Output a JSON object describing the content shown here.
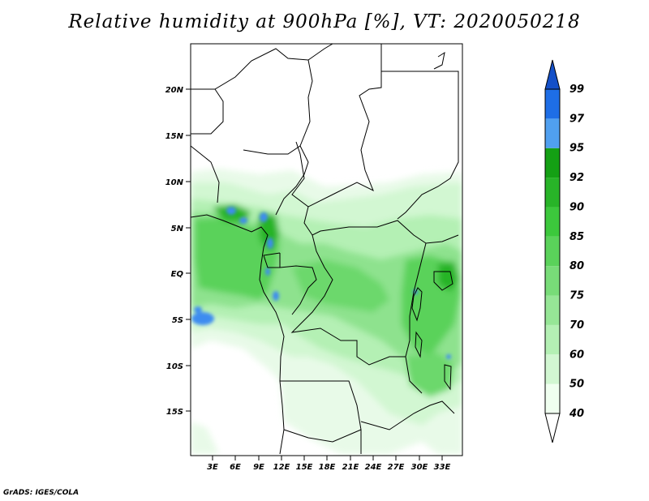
{
  "title": "Relative humidity at 900hPa [%], VT: 2020050218",
  "credit": "GrADS: IGES/COLA",
  "map": {
    "lat_labels": [
      "20N",
      "15N",
      "10N",
      "5N",
      "EQ",
      "5S",
      "10S",
      "15S"
    ],
    "lon_labels": [
      "3E",
      "6E",
      "9E",
      "12E",
      "15E",
      "18E",
      "21E",
      "24E",
      "27E",
      "30E",
      "33E"
    ]
  },
  "colorbar": {
    "levels": [
      "40",
      "50",
      "60",
      "70",
      "75",
      "80",
      "85",
      "90",
      "92",
      "95",
      "97",
      "99"
    ],
    "colors": [
      "#f0fff0",
      "#d2f7d2",
      "#b4f0b4",
      "#96e696",
      "#78dc78",
      "#5ad25a",
      "#3cc83c",
      "#28b428",
      "#14a014",
      "#50a0f0",
      "#1e6ee6",
      "#1450c8"
    ]
  },
  "colors": {
    "light_green": "#d2f7d2",
    "mid_green": "#78dc78",
    "dark_green": "#28b428",
    "blue": "#3c8cf0"
  }
}
